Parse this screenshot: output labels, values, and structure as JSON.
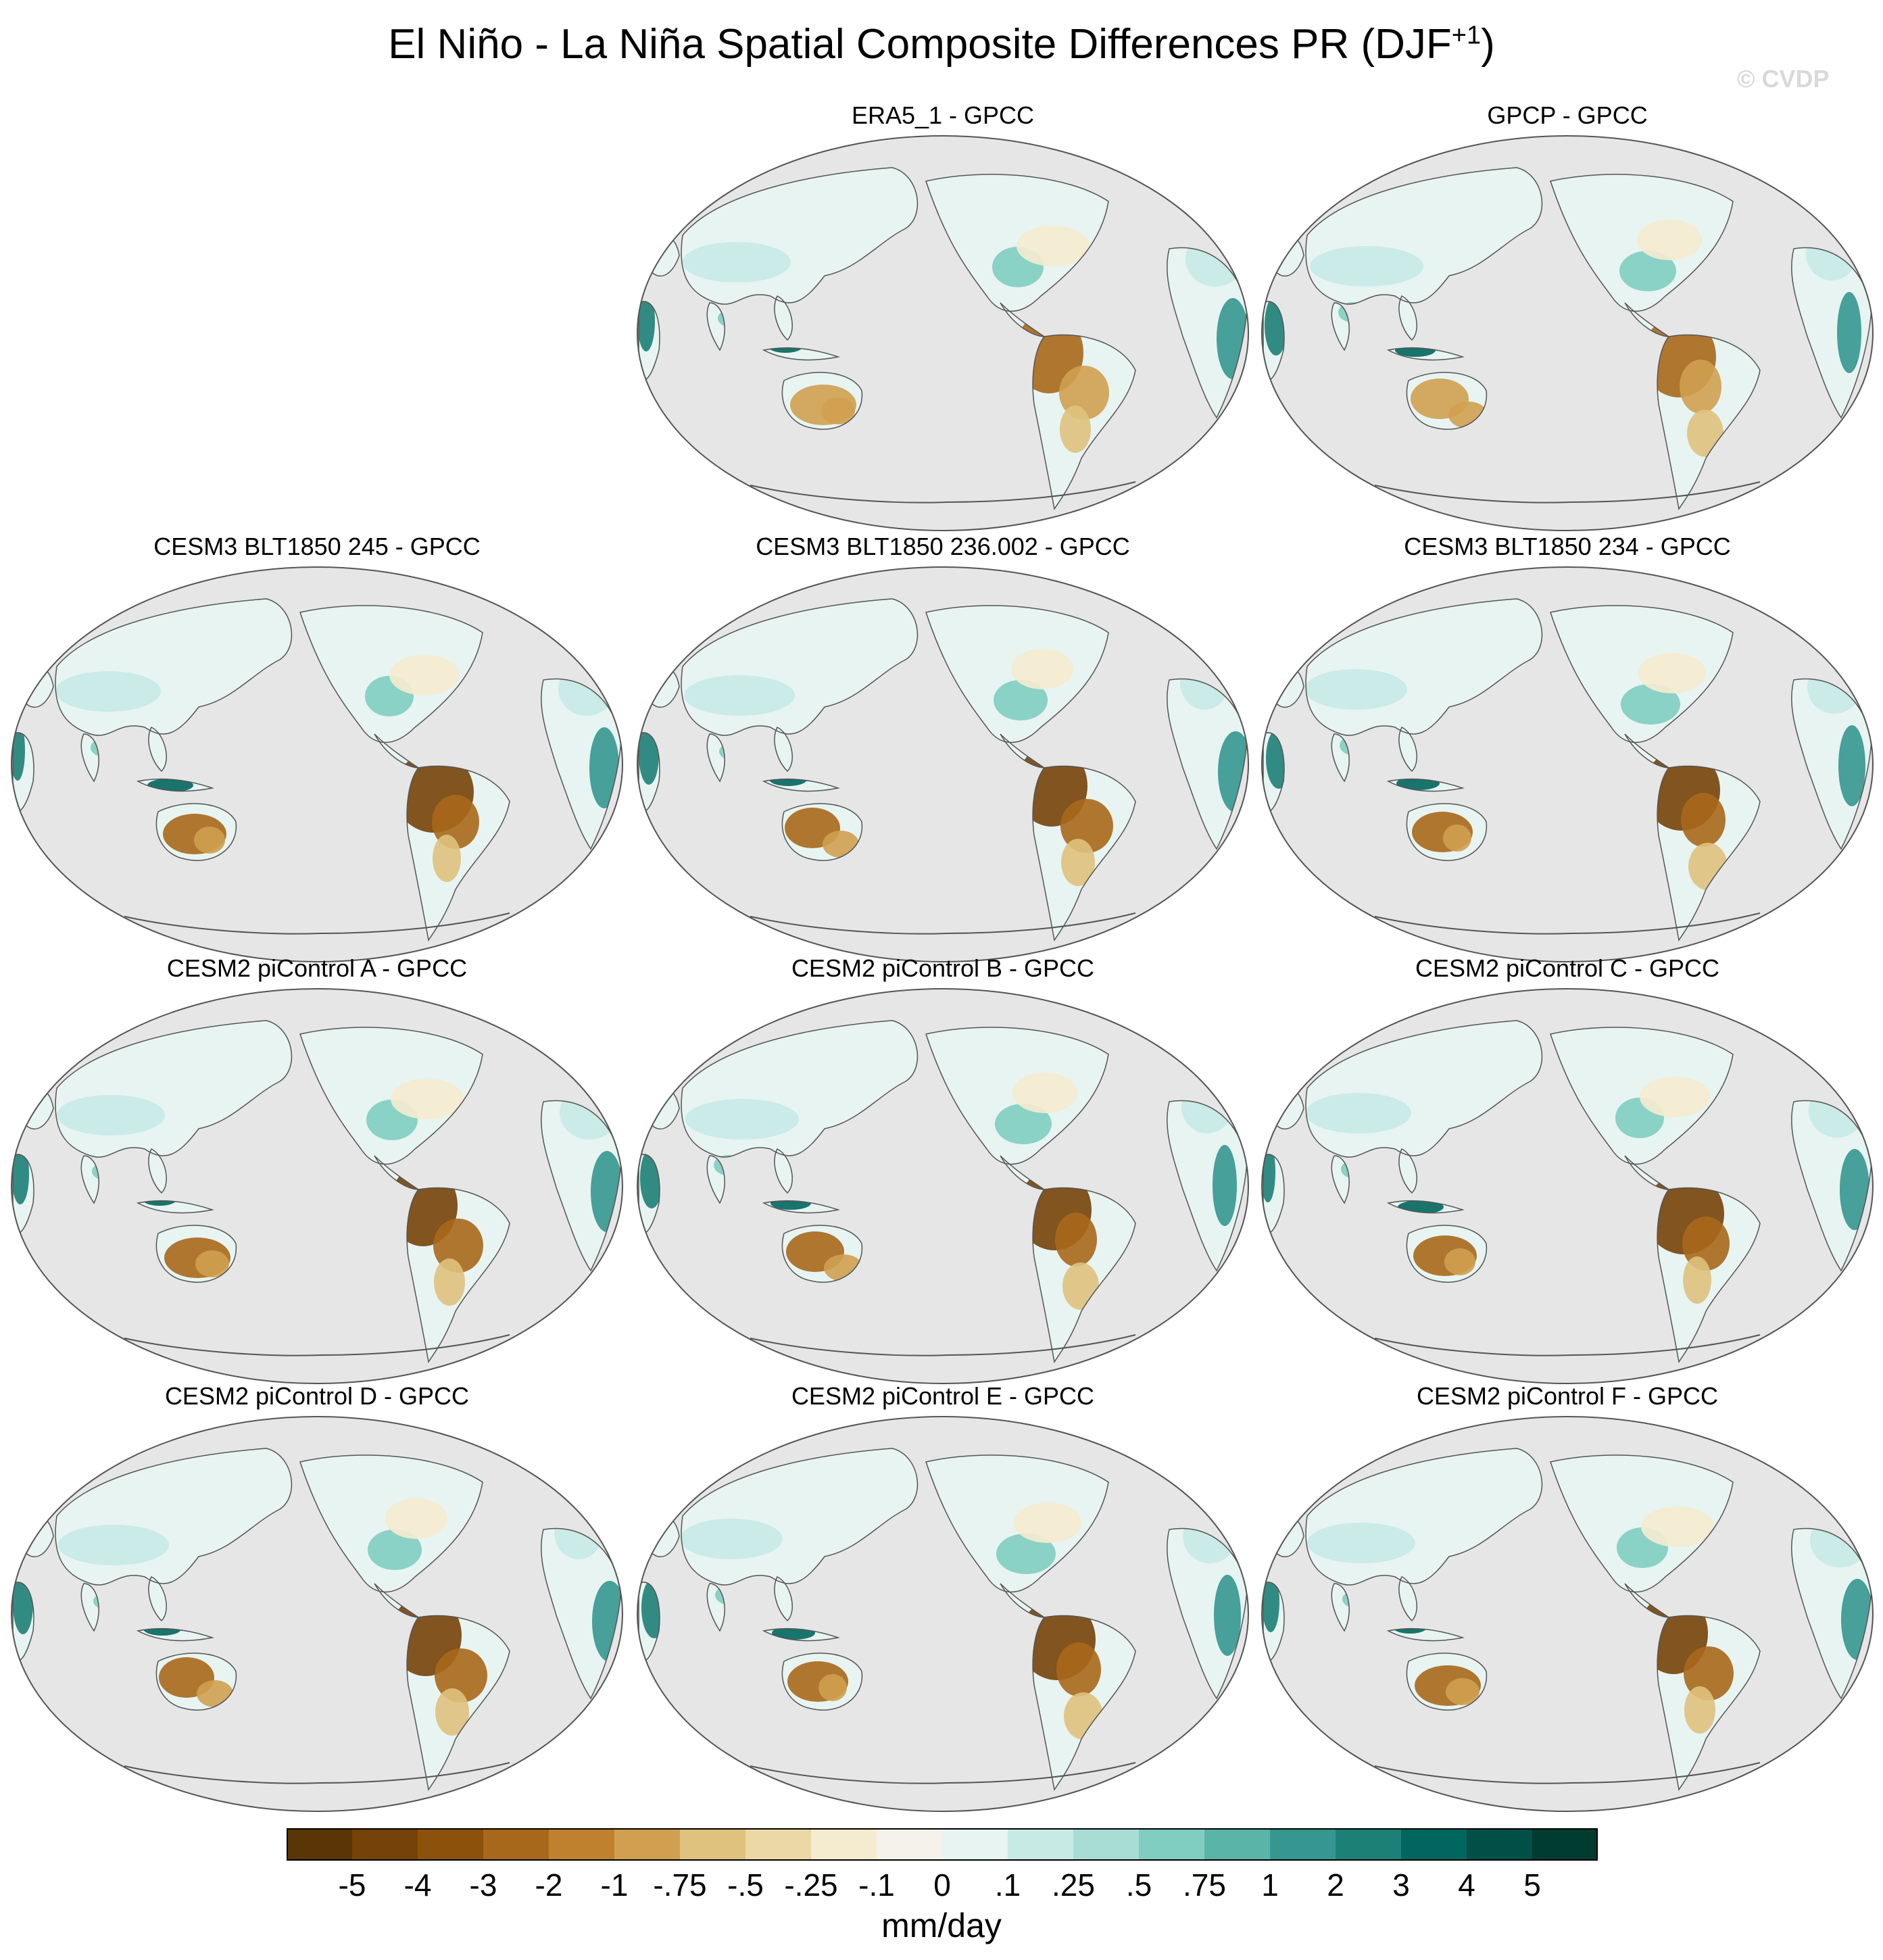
{
  "title": {
    "main": "El Niño - La Niña Spatial Composite Differences PR (DJF",
    "superscript": "+1",
    "close": ")"
  },
  "watermark": "© CVDP",
  "panels": [
    {
      "label": "ERA5_1 - GPCC",
      "row": 0,
      "col": 1
    },
    {
      "label": "GPCP - GPCC",
      "row": 0,
      "col": 2
    },
    {
      "label": "CESM3 BLT1850 245 - GPCC",
      "row": 1,
      "col": 0
    },
    {
      "label": "CESM3 BLT1850 236.002 - GPCC",
      "row": 1,
      "col": 1
    },
    {
      "label": "CESM3 BLT1850 234 - GPCC",
      "row": 1,
      "col": 2
    },
    {
      "label": "CESM2 piControl A - GPCC",
      "row": 2,
      "col": 0
    },
    {
      "label": "CESM2 piControl B - GPCC",
      "row": 2,
      "col": 1
    },
    {
      "label": "CESM2 piControl C - GPCC",
      "row": 2,
      "col": 2
    },
    {
      "label": "CESM2 piControl D - GPCC",
      "row": 3,
      "col": 0
    },
    {
      "label": "CESM2 piControl E - GPCC",
      "row": 3,
      "col": 1
    },
    {
      "label": "CESM2 piControl F - GPCC",
      "row": 3,
      "col": 2
    }
  ],
  "colorbar": {
    "labels": [
      "-5",
      "-4",
      "-3",
      "-2",
      "-1",
      "-.75",
      "-.5",
      "-.25",
      "-.1",
      "0",
      ".1",
      ".25",
      ".5",
      ".75",
      "1",
      "2",
      "3",
      "4",
      "5"
    ],
    "colors": [
      "#5a3505",
      "#754209",
      "#8c510a",
      "#a8681b",
      "#bf812d",
      "#d0a050",
      "#dfc27d",
      "#ecd8a6",
      "#f5ebcf",
      "#f5f2ec",
      "#e7f4f2",
      "#c7eae5",
      "#a8ddd4",
      "#80cdc1",
      "#5ab4a7",
      "#35978f",
      "#1d8077",
      "#01665e",
      "#014f46",
      "#003c30"
    ],
    "units": "mm/day"
  },
  "map_style": {
    "ocean": "#e6e6e6",
    "outline": "#555555"
  }
}
